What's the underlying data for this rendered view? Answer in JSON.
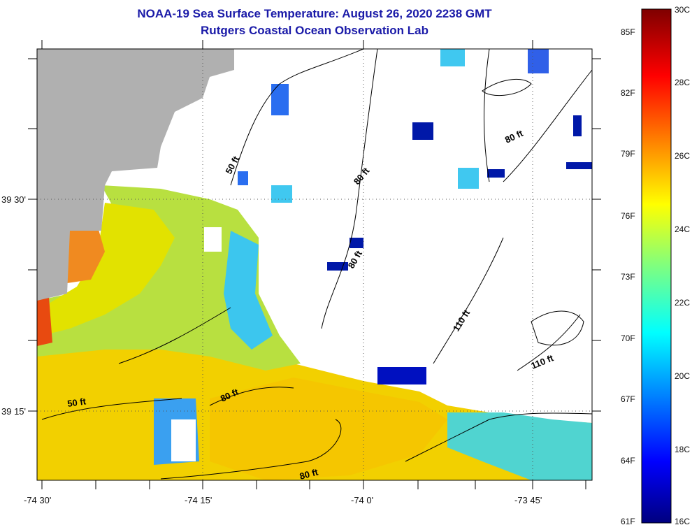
{
  "header": {
    "title": "NOAA-19 Sea Surface Temperature:  August 26, 2020 2238 GMT",
    "subtitle": "Rutgers Coastal Ocean Observation Lab"
  },
  "axes": {
    "lon_ticks": [
      "-74 30'",
      "-74 15'",
      "-74 0'",
      "-73 45'"
    ],
    "lat_ticks": [
      "39 30'",
      "39 15'"
    ]
  },
  "contours": {
    "labels": [
      "50 ft",
      "80 ft",
      "80 ft",
      "80 ft",
      "80 ft",
      "110 ft",
      "110 ft",
      "50 ft",
      "80 ft"
    ]
  },
  "colorbar": {
    "celsius_ticks": [
      "30C",
      "28C",
      "26C",
      "24C",
      "22C",
      "20C",
      "18C",
      "16C"
    ],
    "fahrenheit_ticks": [
      "85F",
      "82F",
      "79F",
      "76F",
      "73F",
      "70F",
      "67F",
      "64F",
      "61F"
    ],
    "range_c": [
      16,
      30
    ]
  },
  "colors": {
    "title": "#1a1aa8",
    "land": "#b0b0b0",
    "no_data": "#ffffff",
    "warm_water": "#f2d000",
    "cool_water": "#40c8f0"
  }
}
